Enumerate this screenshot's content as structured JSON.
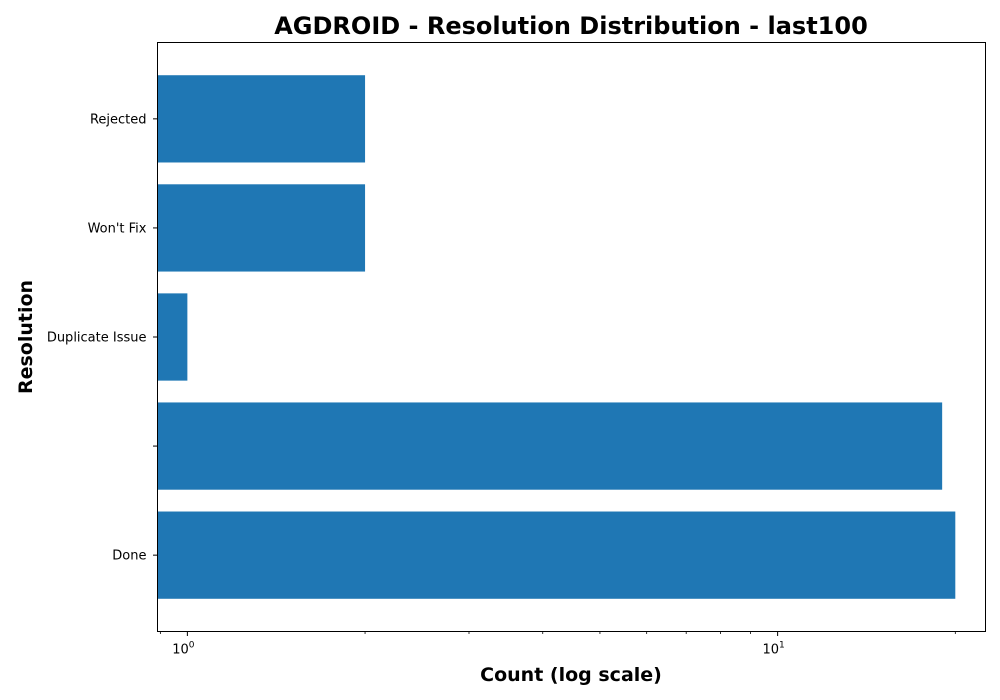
{
  "chart_data": {
    "type": "bar",
    "orientation": "horizontal",
    "title": "AGDROID - Resolution Distribution - last100",
    "xlabel": "Count (log scale)",
    "ylabel": "Resolution",
    "xscale": "log",
    "xlim": [
      0.89,
      22.5
    ],
    "categories": [
      "Done",
      "",
      "Duplicate Issue",
      "Won't Fix",
      "Rejected"
    ],
    "values": [
      20,
      19,
      1,
      2,
      2
    ],
    "x_ticks": [
      {
        "value": 1,
        "base": "10",
        "exp": "0"
      },
      {
        "value": 10,
        "base": "10",
        "exp": "1"
      }
    ],
    "color": "#1f77b4",
    "grid": false,
    "legend": "none"
  }
}
